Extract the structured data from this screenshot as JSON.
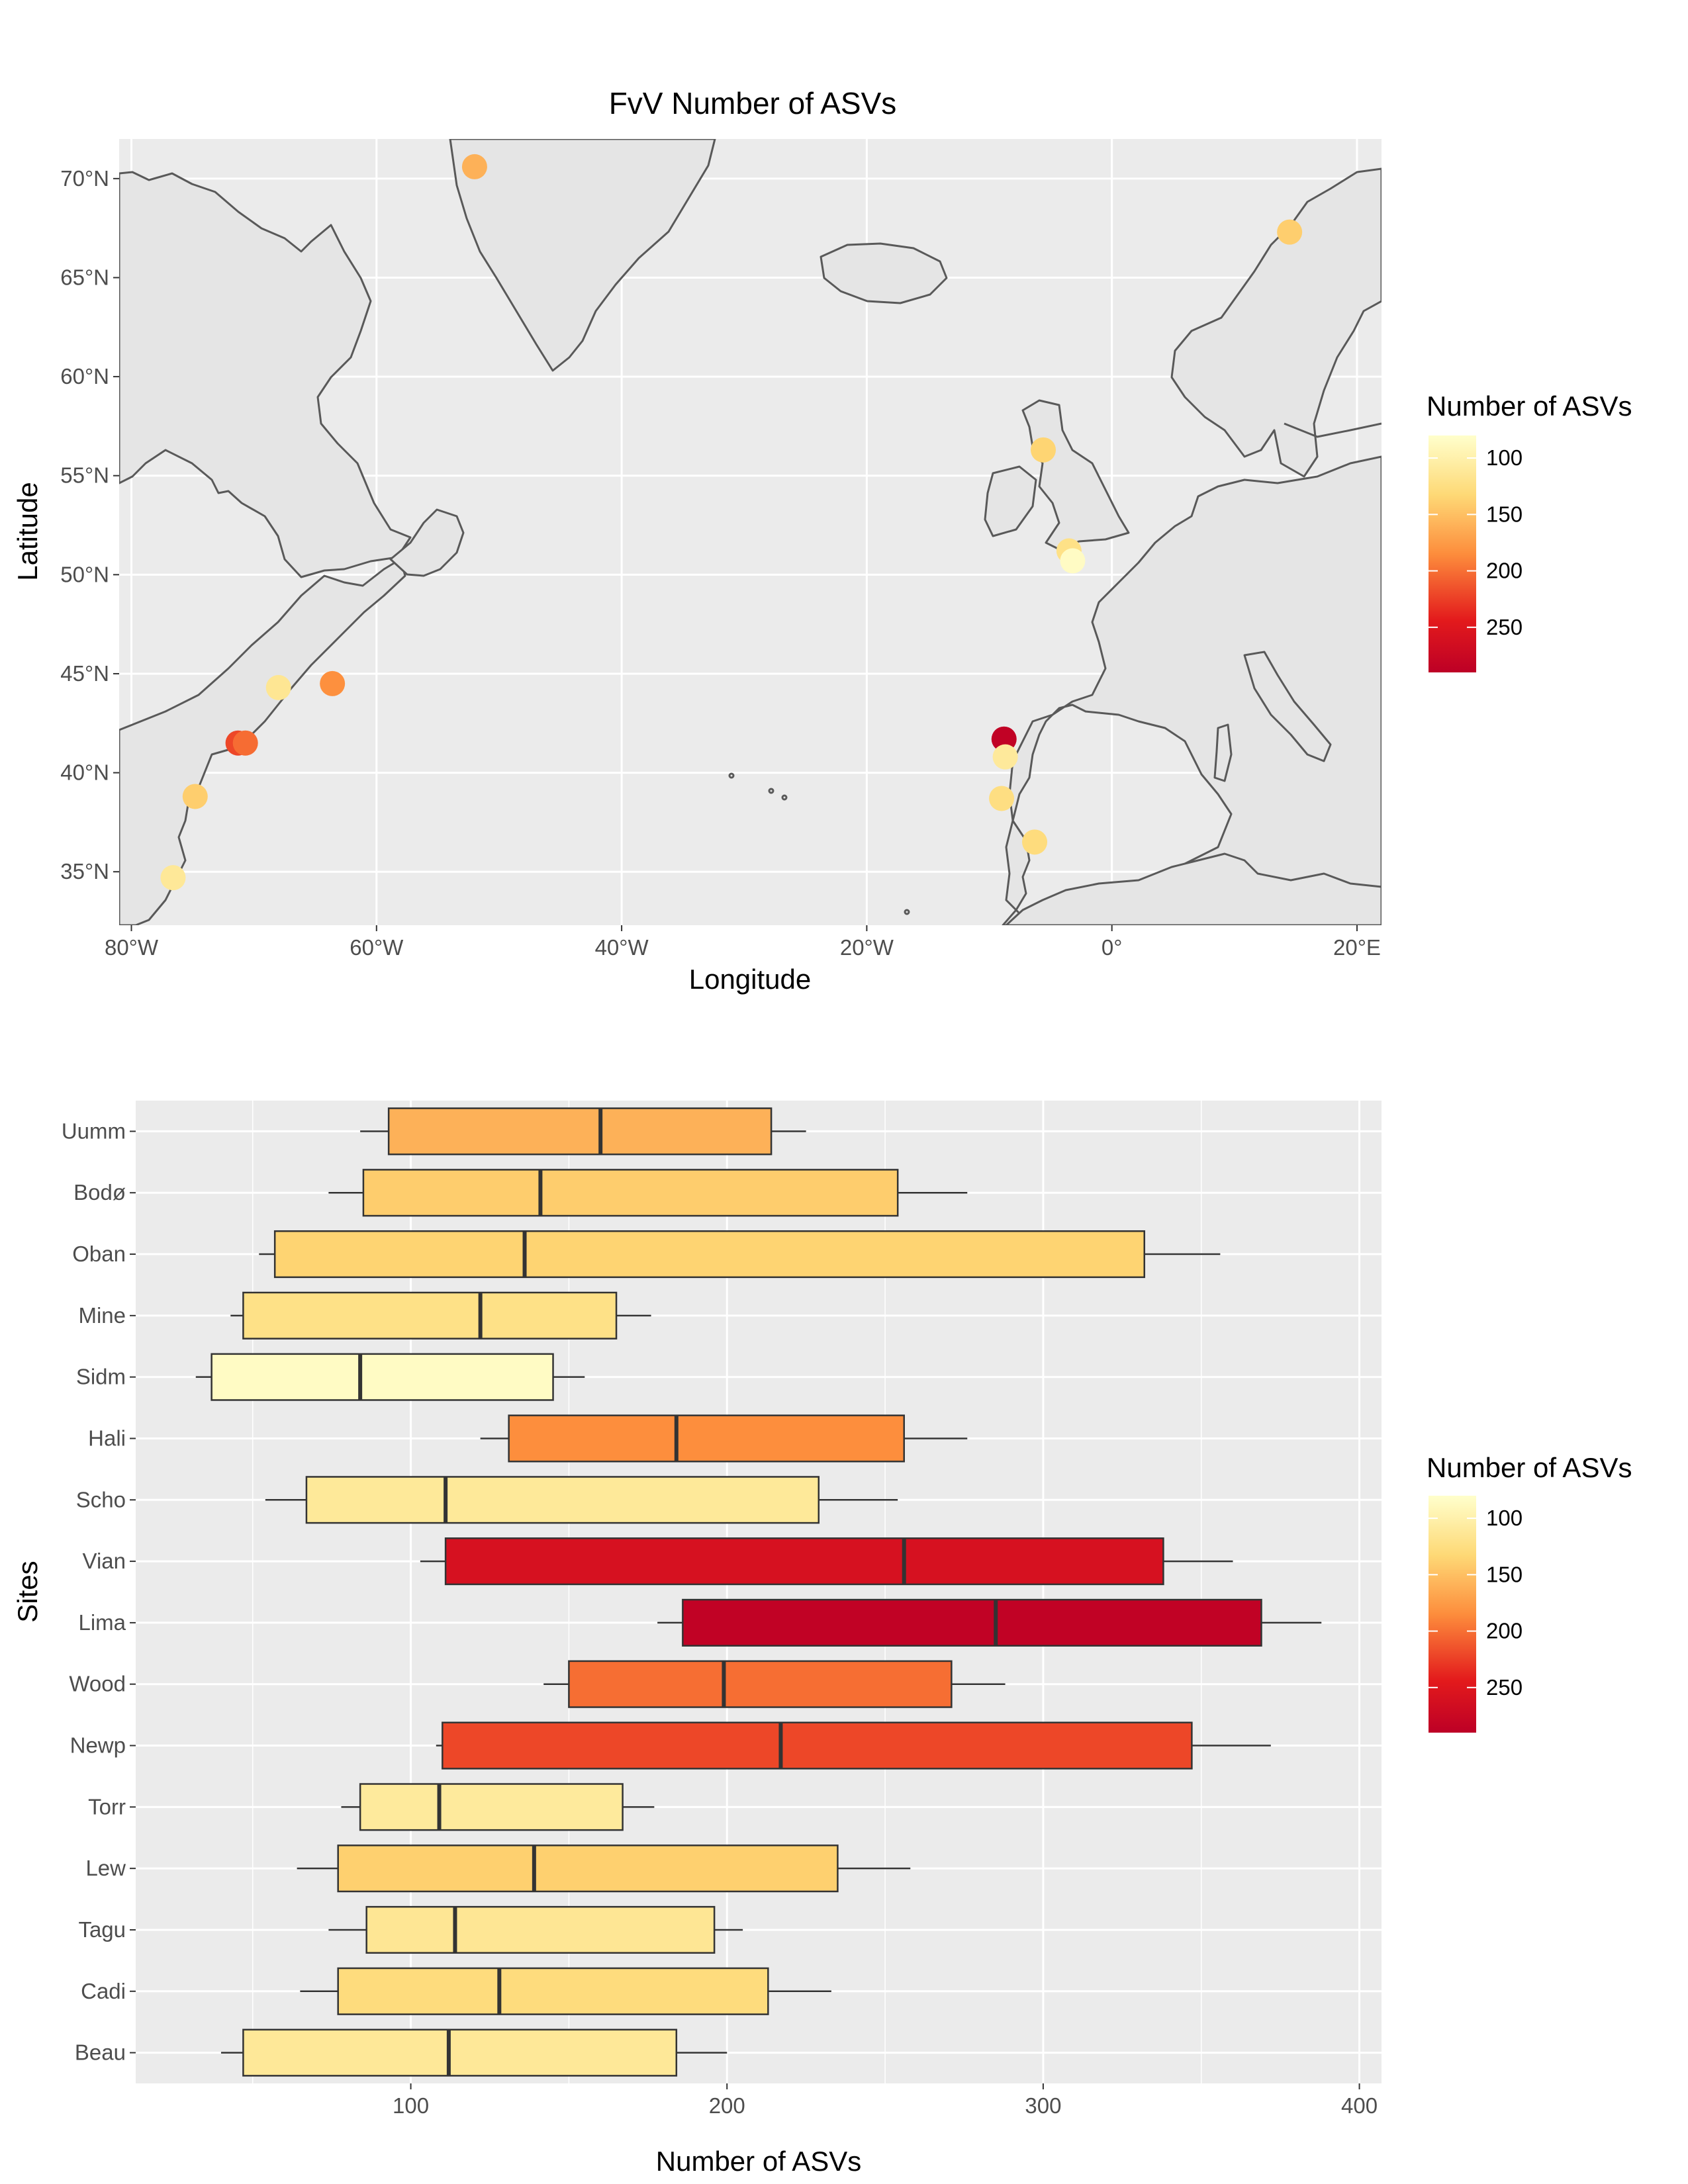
{
  "map": {
    "title": "FvV Number of ASVs",
    "xlabel": "Longitude",
    "ylabel": "Latitude",
    "x_ticks": [
      "80°W",
      "60°W",
      "40°W",
      "20°W",
      "0°",
      "20°E"
    ],
    "y_ticks": [
      "35°N",
      "40°N",
      "45°N",
      "50°N",
      "55°N",
      "60°N",
      "65°N",
      "70°N"
    ],
    "legend_title": "Number of ASVs",
    "legend_ticks": [
      "100",
      "150",
      "200",
      "250"
    ]
  },
  "boxplot": {
    "xlabel": "Number of ASVs",
    "ylabel": "Sites",
    "x_ticks": [
      "100",
      "200",
      "300",
      "400"
    ],
    "legend_title": "Number of ASVs",
    "legend_ticks": [
      "100",
      "150",
      "200",
      "250"
    ]
  },
  "chart_data": [
    {
      "type": "scatter",
      "kind": "map",
      "title": "FvV Number of ASVs",
      "xlabel": "Longitude",
      "ylabel": "Latitude",
      "xlim": [
        -81,
        22
      ],
      "ylim": [
        32.3,
        72
      ],
      "grid": true,
      "legend": "right",
      "color_scale": {
        "name": "Number of ASVs",
        "low": 80,
        "high": 290,
        "colors": [
          "#ffffcc",
          "#fed976",
          "#fd8d3c",
          "#e31a1c",
          "#bd0026"
        ]
      },
      "points": [
        {
          "lon": -52.0,
          "lat": 70.6,
          "value": 160
        },
        {
          "lon": 14.5,
          "lat": 67.3,
          "value": 140
        },
        {
          "lon": -5.6,
          "lat": 56.3,
          "value": 135
        },
        {
          "lon": -3.5,
          "lat": 51.2,
          "value": 122
        },
        {
          "lon": -3.2,
          "lat": 50.7,
          "value": 85
        },
        {
          "lon": -68.0,
          "lat": 44.3,
          "value": 115
        },
        {
          "lon": -63.6,
          "lat": 44.5,
          "value": 183
        },
        {
          "lon": -71.3,
          "lat": 41.5,
          "value": 217
        },
        {
          "lon": -70.7,
          "lat": 41.5,
          "value": 200
        },
        {
          "lon": -74.8,
          "lat": 38.8,
          "value": 140
        },
        {
          "lon": -76.6,
          "lat": 34.7,
          "value": 112
        },
        {
          "lon": -8.8,
          "lat": 41.7,
          "value": 285
        },
        {
          "lon": -8.7,
          "lat": 40.8,
          "value": 110
        },
        {
          "lon": -9.0,
          "lat": 38.7,
          "value": 125
        },
        {
          "lon": -6.3,
          "lat": 36.5,
          "value": 128
        }
      ]
    },
    {
      "type": "box",
      "orientation": "horizontal",
      "xlabel": "Number of ASVs",
      "ylabel": "Sites",
      "xlim": [
        13,
        407
      ],
      "grid": true,
      "legend": "right",
      "color_scale": {
        "name": "Number of ASVs",
        "low": 80,
        "high": 290,
        "colors": [
          "#ffffcc",
          "#fed976",
          "#fd8d3c",
          "#e31a1c",
          "#bd0026"
        ]
      },
      "categories": [
        "Uumm",
        "Bodø",
        "Oban",
        "Mine",
        "Sidm",
        "Hali",
        "Scho",
        "Vian",
        "Lima",
        "Wood",
        "Newp",
        "Torr",
        "Lew",
        "Tagu",
        "Cadi",
        "Beau"
      ],
      "boxes": [
        {
          "site": "Uumm",
          "min": 84,
          "q1": 93,
          "median": 160,
          "q3": 214,
          "max": 225,
          "value": 160
        },
        {
          "site": "Bodø",
          "min": 74,
          "q1": 85,
          "median": 141,
          "q3": 254,
          "max": 276,
          "value": 141
        },
        {
          "site": "Oban",
          "min": 52,
          "q1": 57,
          "median": 136,
          "q3": 332,
          "max": 356,
          "value": 136
        },
        {
          "site": "Mine",
          "min": 43,
          "q1": 47,
          "median": 122,
          "q3": 165,
          "max": 176,
          "value": 122
        },
        {
          "site": "Sidm",
          "min": 32,
          "q1": 37,
          "median": 84,
          "q3": 145,
          "max": 155,
          "value": 85
        },
        {
          "site": "Hali",
          "min": 122,
          "q1": 131,
          "median": 184,
          "q3": 256,
          "max": 276,
          "value": 184
        },
        {
          "site": "Scho",
          "min": 54,
          "q1": 67,
          "median": 111,
          "q3": 229,
          "max": 254,
          "value": 111
        },
        {
          "site": "Vian",
          "min": 103,
          "q1": 111,
          "median": 256,
          "q3": 338,
          "max": 360,
          "value": 256
        },
        {
          "site": "Lima",
          "min": 178,
          "q1": 186,
          "median": 285,
          "q3": 369,
          "max": 388,
          "value": 285
        },
        {
          "site": "Wood",
          "min": 142,
          "q1": 150,
          "median": 199,
          "q3": 271,
          "max": 288,
          "value": 199
        },
        {
          "site": "Newp",
          "min": 108,
          "q1": 110,
          "median": 217,
          "q3": 347,
          "max": 372,
          "value": 217
        },
        {
          "site": "Torr",
          "min": 78,
          "q1": 84,
          "median": 109,
          "q3": 167,
          "max": 177,
          "value": 109
        },
        {
          "site": "Lew",
          "min": 64,
          "q1": 77,
          "median": 139,
          "q3": 235,
          "max": 258,
          "value": 139
        },
        {
          "site": "Tagu",
          "min": 74,
          "q1": 86,
          "median": 114,
          "q3": 196,
          "max": 205,
          "value": 114
        },
        {
          "site": "Cadi",
          "min": 65,
          "q1": 77,
          "median": 128,
          "q3": 213,
          "max": 233,
          "value": 128
        },
        {
          "site": "Beau",
          "min": 40,
          "q1": 47,
          "median": 112,
          "q3": 184,
          "max": 200,
          "value": 112
        }
      ]
    }
  ]
}
